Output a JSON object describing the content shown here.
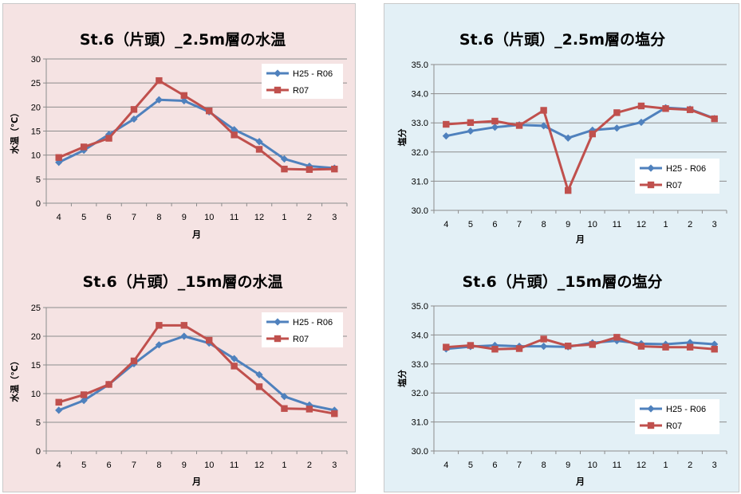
{
  "chart_data": [
    {
      "id": "c1",
      "type": "line",
      "title": "St.6（片頭）_2.5m層の水温",
      "xlabel": "月",
      "ylabel": "水温（℃）",
      "categories": [
        "4",
        "5",
        "6",
        "7",
        "8",
        "9",
        "10",
        "11",
        "12",
        "1",
        "2",
        "3"
      ],
      "ylim": [
        0,
        30
      ],
      "yticks": [
        0,
        5,
        10,
        15,
        20,
        25,
        30
      ],
      "ytick_labels": [
        "0",
        "5",
        "10",
        "15",
        "20",
        "25",
        "30"
      ],
      "series": [
        {
          "name": "H25 - R06",
          "color": "#4f81bd",
          "marker": "diamond",
          "values": [
            8.5,
            11.0,
            14.3,
            17.5,
            21.5,
            21.3,
            19.0,
            15.3,
            12.8,
            9.2,
            7.7,
            7.3
          ]
        },
        {
          "name": "R07",
          "color": "#c0504d",
          "marker": "square",
          "values": [
            9.5,
            11.7,
            13.5,
            19.5,
            25.5,
            22.4,
            19.2,
            14.2,
            11.2,
            7.1,
            7.0,
            7.1
          ]
        }
      ],
      "legend": "top-right"
    },
    {
      "id": "c2",
      "type": "line",
      "title": "St.6（片頭）_2.5m層の塩分",
      "xlabel": "月",
      "ylabel": "塩分",
      "categories": [
        "4",
        "5",
        "6",
        "7",
        "8",
        "9",
        "10",
        "11",
        "12",
        "1",
        "2",
        "3"
      ],
      "ylim": [
        30,
        35
      ],
      "yticks": [
        30,
        31,
        32,
        33,
        34,
        35
      ],
      "ytick_labels": [
        "30.0",
        "31.0",
        "32.0",
        "33.0",
        "34.0",
        "35.0"
      ],
      "series": [
        {
          "name": "H25 - R06",
          "color": "#4f81bd",
          "marker": "diamond",
          "values": [
            32.55,
            32.72,
            32.85,
            32.93,
            32.9,
            32.48,
            32.75,
            32.82,
            33.02,
            33.52,
            33.47,
            33.15
          ]
        },
        {
          "name": "R07",
          "color": "#c0504d",
          "marker": "square",
          "values": [
            32.95,
            33.01,
            33.06,
            32.91,
            33.43,
            30.68,
            32.62,
            33.35,
            33.58,
            33.49,
            33.45,
            33.14
          ]
        }
      ],
      "legend": "right"
    },
    {
      "id": "c3",
      "type": "line",
      "title": "St.6（片頭）_15m層の水温",
      "xlabel": "月",
      "ylabel": "水温（℃）",
      "categories": [
        "4",
        "5",
        "6",
        "7",
        "8",
        "9",
        "10",
        "11",
        "12",
        "1",
        "2",
        "3"
      ],
      "ylim": [
        0,
        25
      ],
      "yticks": [
        0,
        5,
        10,
        15,
        20,
        25
      ],
      "ytick_labels": [
        "0",
        "5",
        "10",
        "15",
        "20",
        "25"
      ],
      "series": [
        {
          "name": "H25 - R06",
          "color": "#4f81bd",
          "marker": "diamond",
          "values": [
            7.1,
            8.8,
            11.6,
            15.2,
            18.5,
            20.0,
            18.8,
            16.1,
            13.3,
            9.5,
            8.0,
            7.1
          ]
        },
        {
          "name": "R07",
          "color": "#c0504d",
          "marker": "square",
          "values": [
            8.5,
            9.8,
            11.6,
            15.7,
            21.9,
            21.9,
            19.3,
            14.8,
            11.2,
            7.4,
            7.3,
            6.5
          ]
        }
      ],
      "legend": "top-right"
    },
    {
      "id": "c4",
      "type": "line",
      "title": "St.6（片頭）_15m層の塩分",
      "xlabel": "月",
      "ylabel": "塩分",
      "categories": [
        "4",
        "5",
        "6",
        "7",
        "8",
        "9",
        "10",
        "11",
        "12",
        "1",
        "2",
        "3"
      ],
      "ylim": [
        30,
        35
      ],
      "yticks": [
        30,
        31,
        32,
        33,
        34,
        35
      ],
      "ytick_labels": [
        "30.0",
        "31.0",
        "32.0",
        "33.0",
        "34.0",
        "35.0"
      ],
      "series": [
        {
          "name": "H25 - R06",
          "color": "#4f81bd",
          "marker": "diamond",
          "values": [
            33.52,
            33.6,
            33.64,
            33.61,
            33.61,
            33.59,
            33.73,
            33.8,
            33.7,
            33.68,
            33.74,
            33.68
          ]
        },
        {
          "name": "R07",
          "color": "#c0504d",
          "marker": "square",
          "values": [
            33.58,
            33.64,
            33.51,
            33.53,
            33.86,
            33.62,
            33.67,
            33.92,
            33.61,
            33.58,
            33.58,
            33.51
          ]
        }
      ],
      "legend": "bottom-right"
    }
  ]
}
